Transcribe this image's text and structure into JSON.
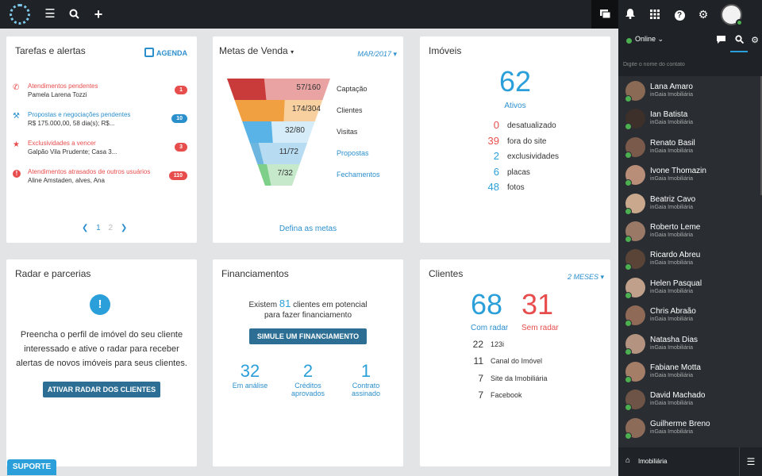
{
  "topbar": {
    "icons": [
      "menu-icon",
      "search-icon",
      "plus-icon",
      "chat-icon",
      "bell-icon",
      "apps-icon",
      "help-icon",
      "gear-icon"
    ]
  },
  "tasks": {
    "title": "Tarefas e alertas",
    "agenda": "AGENDA",
    "items": [
      {
        "title": "Atendimentos pendentes",
        "detail": "Pamela Larena Tozzi",
        "count": "1",
        "color": "#e84d4d"
      },
      {
        "title": "Propostas e negociações pendentes",
        "detail": "R$ 175.000,00, 58 dia(s); R$...",
        "count": "10",
        "color": "#2b8fcc"
      },
      {
        "title": "Exclusividades a vencer",
        "detail": "Galpão Vila Prudente; Casa 3...",
        "count": "3",
        "color": "#e84d4d"
      },
      {
        "title": "Atendimentos atrasados de outros usuários",
        "detail": "Aline Amstaden, alves, Ana",
        "count": "110",
        "color": "#e84d4d"
      }
    ],
    "pages": [
      "1",
      "2"
    ]
  },
  "metas": {
    "title": "Metas de Venda",
    "period": "MAR/2017",
    "stages": [
      {
        "value": "57/160",
        "label": "Captação",
        "dark": "#c93b3b",
        "light": "#e9a3a3",
        "progress": 0.36
      },
      {
        "value": "174/304",
        "label": "Clientes",
        "dark": "#f0a040",
        "light": "#f8d0a0",
        "progress": 0.57
      },
      {
        "value": "32/80",
        "label": "Visitas",
        "dark": "#5ab3e6",
        "light": "#d6ecf8",
        "progress": 0.4
      },
      {
        "value": "11/72",
        "label": "Propostas",
        "dark": "#6cb6e0",
        "light": "#b7dcf2",
        "progress": 0.15
      },
      {
        "value": "7/32",
        "label": "Fechamentos",
        "dark": "#7dcf8a",
        "light": "#c6e9cb",
        "progress": 0.22
      }
    ],
    "link": "Defina as metas"
  },
  "imoveis": {
    "title": "Imóveis",
    "total": "62",
    "total_label": "Ativos",
    "stats": [
      {
        "n": "0",
        "label": "desatualizado",
        "color": "#e84d4d"
      },
      {
        "n": "39",
        "label": "fora do site",
        "color": "#e84d4d"
      },
      {
        "n": "2",
        "label": "exclusividades",
        "color": "#2b9fd9"
      },
      {
        "n": "6",
        "label": "placas",
        "color": "#2b9fd9"
      },
      {
        "n": "48",
        "label": "fotos",
        "color": "#2b9fd9"
      }
    ]
  },
  "radar": {
    "title": "Radar e parcerias",
    "text": "Preencha o perfil de imóvel do seu cliente interessado e ative o radar para receber alertas de novos imóveis para seus clientes.",
    "button": "ATIVAR RADAR DOS CLIENTES"
  },
  "fin": {
    "title": "Financiamentos",
    "text_pre": "Existem",
    "count": "81",
    "text_post": "clientes em potencial",
    "text_line2": "para fazer financiamento",
    "button": "SIMULE UM FINANCIAMENTO",
    "stats": [
      {
        "n": "32",
        "label1": "Em análise",
        "label2": ""
      },
      {
        "n": "2",
        "label1": "Créditos",
        "label2": "aprovados"
      },
      {
        "n": "1",
        "label1": "Contrato",
        "label2": "assinado"
      }
    ]
  },
  "clientes": {
    "title": "Clientes",
    "period": "2 MESES",
    "with_radar": "68",
    "with_radar_label": "Com radar",
    "without_radar": "31",
    "without_radar_label": "Sem radar",
    "sources": [
      {
        "n": "22",
        "label": "123i"
      },
      {
        "n": "11",
        "label": "Canal do Imóvel"
      },
      {
        "n": "7",
        "label": "Site da Imobiliária"
      },
      {
        "n": "7",
        "label": "Facebook"
      }
    ]
  },
  "support": "SUPORTE",
  "chat": {
    "status": "Online",
    "search_placeholder": "Digite o nome do contato",
    "contacts": [
      {
        "name": "Lana Amaro",
        "company": "inGaia Imobiliária",
        "color": "#8a6a55"
      },
      {
        "name": "Ian Batista",
        "company": "inGaia Imobiliária",
        "color": "#3d2f2a"
      },
      {
        "name": "Renato Basil",
        "company": "inGaia Imobiliária",
        "color": "#7a5a4a"
      },
      {
        "name": "Ivone Thomazin",
        "company": "inGaia Imobiliária",
        "color": "#b88e78"
      },
      {
        "name": "Beatriz Cavo",
        "company": "inGaia Imobiliária",
        "color": "#c9a88d"
      },
      {
        "name": "Roberto Leme",
        "company": "inGaia Imobiliária",
        "color": "#9a7a66"
      },
      {
        "name": "Ricardo Abreu",
        "company": "inGaia Imobiliária",
        "color": "#5a4438"
      },
      {
        "name": "Helen Pasqual",
        "company": "inGaia Imobiliária",
        "color": "#c0a08a"
      },
      {
        "name": "Chris Abraão",
        "company": "inGaia Imobiliária",
        "color": "#8f6a56"
      },
      {
        "name": "Natasha Dias",
        "company": "inGaia Imobiliária",
        "color": "#b49480"
      },
      {
        "name": "Fabiane Motta",
        "company": "inGaia Imobiliária",
        "color": "#a57e68"
      },
      {
        "name": "David Machado",
        "company": "inGaia Imobiliária",
        "color": "#6e5446"
      },
      {
        "name": "Guilherme Breno",
        "company": "inGaia Imobiliária",
        "color": "#8c6b58"
      }
    ],
    "footer": "Imobiliária"
  }
}
